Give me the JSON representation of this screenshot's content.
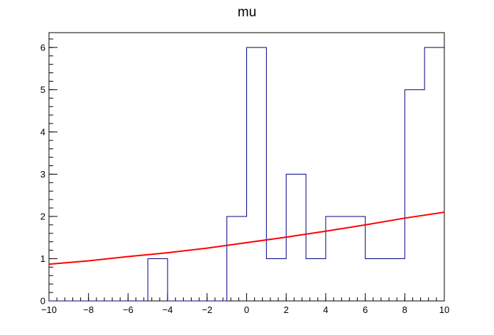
{
  "chart_data": {
    "type": "histogram",
    "title": "mu",
    "xlabel": "",
    "ylabel": "",
    "xlim": [
      -10,
      10
    ],
    "ylim": [
      0,
      6.35
    ],
    "x_ticks": [
      -10,
      -8,
      -6,
      -4,
      -2,
      0,
      2,
      4,
      6,
      8,
      10
    ],
    "x_tick_labels": [
      "−10",
      "−8",
      "−6",
      "−4",
      "−2",
      "0",
      "2",
      "4",
      "6",
      "8",
      "10"
    ],
    "y_ticks": [
      0,
      1,
      2,
      3,
      4,
      5,
      6
    ],
    "y_tick_labels": [
      "0",
      "1",
      "2",
      "3",
      "4",
      "5",
      "6"
    ],
    "grid": false,
    "legend": "none",
    "histogram": {
      "bin_edges": [
        -10,
        -9,
        -8,
        -7,
        -6,
        -5,
        -4,
        -3,
        -2,
        -1,
        0,
        1,
        2,
        3,
        4,
        5,
        6,
        7,
        8,
        9,
        10
      ],
      "counts": [
        0,
        0,
        0,
        0,
        0,
        1,
        0,
        0,
        0,
        2,
        6,
        1,
        3,
        1,
        2,
        2,
        1,
        1,
        5,
        6
      ],
      "color": "#000080"
    },
    "fit_curve": {
      "x": [
        -10,
        -8,
        -6,
        -4,
        -2,
        0,
        2,
        4,
        6,
        8,
        10
      ],
      "y": [
        0.87,
        0.95,
        1.05,
        1.14,
        1.25,
        1.38,
        1.51,
        1.65,
        1.8,
        1.96,
        2.1
      ],
      "color": "#ff0000"
    }
  }
}
